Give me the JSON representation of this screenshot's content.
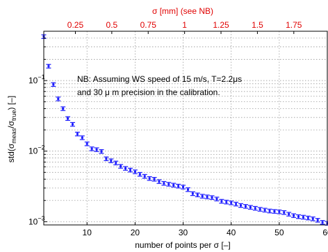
{
  "chart_data": {
    "type": "scatter",
    "title": "",
    "xlabel": "number of points per σ [–]",
    "ylabel_main": "std(σ",
    "ylabel_sub1": "meas",
    "ylabel_mid": "/σ",
    "ylabel_sub2": "true",
    "ylabel_end": ") [–]",
    "top_xlabel": "σ [mm] (see NB)",
    "annotation_line1": "NB: Assuming WS speed of 15 m/s, T=2.2μs",
    "annotation_line2": "and 30 μ m precision in the calibration.",
    "xlim": [
      1,
      60
    ],
    "ylim": [
      0.0009,
      0.5
    ],
    "y_scale": "log",
    "grid": true,
    "x_ticks": [
      10,
      20,
      30,
      40,
      50,
      60
    ],
    "x_tick_labels": [
      "10",
      "20",
      "30",
      "40",
      "50",
      "60"
    ],
    "top_ticks": [
      0.25,
      0.5,
      0.75,
      1,
      1.25,
      1.5,
      1.75
    ],
    "top_tick_labels": [
      "0.25",
      "0.5",
      "0.75",
      "1",
      "1.25",
      "1.5",
      "1.75"
    ],
    "top_scale_mm_per_point": 0.033,
    "y_tick_values": [
      0.001,
      0.01,
      0.1
    ],
    "y_tick_base": [
      "10",
      "10",
      "10"
    ],
    "y_tick_exp": [
      "−3",
      "−2",
      "−1"
    ],
    "colors": {
      "points": "#1a1aff",
      "top_axis": "#e00000"
    },
    "x": [
      1,
      2,
      3,
      4,
      5,
      6,
      7,
      8,
      9,
      10,
      11,
      12,
      13,
      14,
      15,
      16,
      17,
      18,
      19,
      20,
      21,
      22,
      23,
      24,
      25,
      26,
      27,
      28,
      29,
      30,
      31,
      32,
      33,
      34,
      35,
      36,
      37,
      38,
      39,
      40,
      41,
      42,
      43,
      44,
      45,
      46,
      47,
      48,
      49,
      50,
      51,
      52,
      53,
      54,
      55,
      56,
      57,
      58,
      59,
      60
    ],
    "y": [
      0.42,
      0.16,
      0.088,
      0.055,
      0.04,
      0.029,
      0.024,
      0.0175,
      0.0155,
      0.0127,
      0.0108,
      0.0105,
      0.0099,
      0.0078,
      0.0073,
      0.0068,
      0.0061,
      0.0057,
      0.0054,
      0.0051,
      0.0047,
      0.0044,
      0.0041,
      0.004,
      0.0037,
      0.0035,
      0.0034,
      0.0033,
      0.0032,
      0.0031,
      0.00285,
      0.0025,
      0.0024,
      0.0023,
      0.00225,
      0.0022,
      0.0021,
      0.00195,
      0.0019,
      0.00185,
      0.00178,
      0.0017,
      0.00165,
      0.0016,
      0.00155,
      0.0015,
      0.00146,
      0.00142,
      0.0014,
      0.00138,
      0.00135,
      0.00128,
      0.00122,
      0.00118,
      0.00116,
      0.00113,
      0.0011,
      0.00105,
      0.00098,
      0.00095
    ],
    "err_frac": 0.06
  }
}
